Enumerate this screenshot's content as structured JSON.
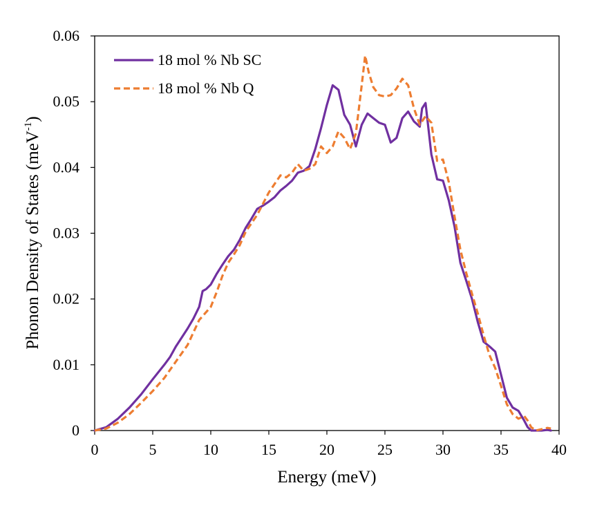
{
  "chart_data": {
    "type": "line",
    "xlabel": "Energy (meV)",
    "ylabel": "Phonon Density of States (meV",
    "ylabel_sup": "-1",
    "ylabel_close": ")",
    "xlim": [
      0,
      40
    ],
    "ylim": [
      0,
      0.06
    ],
    "grid": false,
    "legend_position": "top-left",
    "x_ticks": [
      "0",
      "5",
      "10",
      "15",
      "20",
      "25",
      "30",
      "35",
      "40"
    ],
    "y_ticks": [
      "0",
      "0.01",
      "0.02",
      "0.03",
      "0.04",
      "0.05",
      "0.06"
    ],
    "series": [
      {
        "name": "18 mol % Nb SC",
        "color": "#7030A0",
        "style": "solid",
        "x": [
          0,
          1,
          2,
          3,
          4,
          5,
          6,
          6.5,
          7,
          8,
          8.5,
          9,
          9.3,
          9.6,
          10,
          10.5,
          11,
          11.5,
          12,
          12.5,
          13,
          13.5,
          14,
          14.5,
          15,
          15.5,
          16,
          16.5,
          17,
          17.5,
          18,
          18.5,
          19,
          19.5,
          20,
          20.5,
          21,
          21.5,
          22,
          22.5,
          23,
          23.5,
          24,
          24.5,
          25,
          25.5,
          26,
          26.5,
          27,
          27.5,
          28,
          28.2,
          28.5,
          29,
          29.5,
          30,
          30.5,
          31,
          31.5,
          32,
          32.5,
          33,
          33.5,
          34,
          34.5,
          35,
          35.5,
          36,
          36.5,
          37,
          37.3,
          37.6,
          38,
          38.5,
          39,
          39.3
        ],
        "y": [
          0,
          0.0005,
          0.0018,
          0.0035,
          0.0055,
          0.0078,
          0.01,
          0.0112,
          0.0128,
          0.0155,
          0.017,
          0.0188,
          0.0212,
          0.0215,
          0.0222,
          0.0238,
          0.0252,
          0.0265,
          0.0275,
          0.029,
          0.0308,
          0.0322,
          0.0337,
          0.0342,
          0.0348,
          0.0355,
          0.0365,
          0.0372,
          0.038,
          0.0392,
          0.0395,
          0.0402,
          0.0428,
          0.046,
          0.0495,
          0.0525,
          0.0518,
          0.048,
          0.0465,
          0.0432,
          0.0465,
          0.0482,
          0.0475,
          0.0468,
          0.0465,
          0.0438,
          0.0445,
          0.0475,
          0.0485,
          0.047,
          0.0462,
          0.049,
          0.0498,
          0.042,
          0.0382,
          0.038,
          0.035,
          0.031,
          0.0255,
          0.0228,
          0.02,
          0.0165,
          0.0135,
          0.0128,
          0.012,
          0.0085,
          0.005,
          0.0035,
          0.003,
          0.0015,
          0.0005,
          0.0,
          0.0,
          0.0,
          0.0001,
          0.0
        ]
      },
      {
        "name": "18 mol % Nb Q",
        "color": "#ED7D31",
        "style": "dashed",
        "x": [
          0,
          1,
          2,
          3,
          4,
          5,
          6,
          7,
          8,
          9,
          9.5,
          10,
          10.5,
          11,
          11.5,
          12,
          12.5,
          13,
          13.5,
          14,
          14.5,
          15,
          15.5,
          16,
          16.5,
          17,
          17.5,
          18,
          18.5,
          19,
          19.5,
          20,
          20.5,
          21,
          21.5,
          22,
          22.5,
          23,
          23.3,
          23.6,
          24,
          24.5,
          25,
          25.5,
          26,
          26.5,
          27,
          27.5,
          28,
          28.5,
          29,
          29.5,
          30,
          30.5,
          31,
          31.5,
          32,
          32.5,
          33,
          33.5,
          34,
          34.5,
          35,
          35.5,
          36,
          36.5,
          37,
          37.3,
          37.6,
          38,
          38.5,
          39,
          39.3
        ],
        "y": [
          0,
          0.0003,
          0.0012,
          0.0025,
          0.0042,
          0.006,
          0.008,
          0.0105,
          0.013,
          0.0168,
          0.0178,
          0.0188,
          0.021,
          0.0235,
          0.0255,
          0.0268,
          0.0282,
          0.0302,
          0.0315,
          0.0328,
          0.0345,
          0.0362,
          0.0375,
          0.0388,
          0.0385,
          0.0392,
          0.0405,
          0.0395,
          0.0398,
          0.0405,
          0.0432,
          0.0422,
          0.0432,
          0.0455,
          0.0445,
          0.0428,
          0.0452,
          0.0525,
          0.057,
          0.0545,
          0.0522,
          0.051,
          0.0508,
          0.051,
          0.052,
          0.0535,
          0.0525,
          0.049,
          0.0465,
          0.0478,
          0.0468,
          0.041,
          0.0412,
          0.0378,
          0.0325,
          0.0275,
          0.024,
          0.0208,
          0.0178,
          0.0145,
          0.0115,
          0.0095,
          0.0068,
          0.004,
          0.0025,
          0.0018,
          0.0022,
          0.0015,
          0.0005,
          0.0,
          0.0002,
          0.0004,
          0.0003
        ]
      }
    ]
  }
}
